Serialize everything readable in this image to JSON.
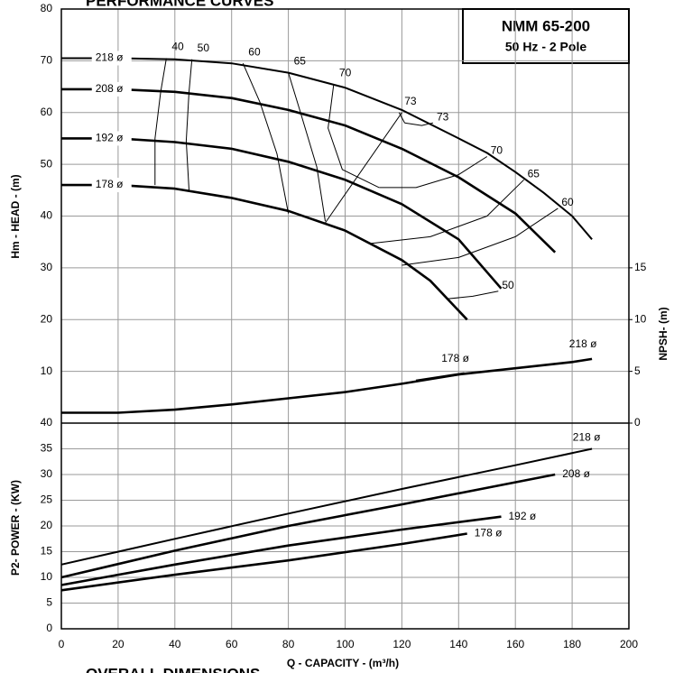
{
  "chart_data": [
    {
      "type": "line",
      "title": "PERFORMANCE CURVES",
      "model": "NMM 65-200",
      "spec": "50 Hz - 2 Pole",
      "ylabel": "Hm - HEAD - (m)",
      "y2label": "NPSH- (m)",
      "color": "#000000",
      "grid": true,
      "xlim": [
        0,
        200
      ],
      "ylim": [
        0,
        80
      ],
      "yticks": [
        10,
        20,
        30,
        40,
        50,
        60,
        70,
        80
      ],
      "y2lim": [
        0,
        40
      ],
      "y2ticks": [
        0,
        5,
        10,
        15
      ],
      "series": [
        {
          "name": "218 ø",
          "x": [
            0,
            20,
            40,
            60,
            80,
            100,
            120,
            140,
            150,
            160,
            170,
            180,
            187
          ],
          "values": [
            70.5,
            70.5,
            70.3,
            69.5,
            67.7,
            64.8,
            60.5,
            55,
            52.2,
            48.5,
            44.5,
            40,
            35.5
          ]
        },
        {
          "name": "208 ø",
          "x": [
            0,
            20,
            40,
            60,
            80,
            100,
            120,
            140,
            160,
            174
          ],
          "values": [
            64.5,
            64.5,
            64,
            62.8,
            60.5,
            57.5,
            53,
            47.5,
            40.5,
            33
          ]
        },
        {
          "name": "192 ø",
          "x": [
            0,
            20,
            40,
            60,
            80,
            100,
            120,
            140,
            155
          ],
          "values": [
            55,
            55,
            54.3,
            53,
            50.5,
            47,
            42.3,
            35.5,
            26
          ]
        },
        {
          "name": "178 ø",
          "x": [
            0,
            20,
            40,
            60,
            80,
            100,
            120,
            130,
            143
          ],
          "values": [
            46,
            46,
            45.3,
            43.5,
            41,
            37.2,
            31.5,
            27.5,
            20
          ]
        },
        {
          "name": "218 ø",
          "axis": "y2",
          "x": [
            0,
            20,
            40,
            60,
            80,
            100,
            120,
            140,
            160,
            180,
            187
          ],
          "values": [
            1,
            1,
            1.3,
            1.8,
            2.4,
            3,
            3.8,
            4.7,
            5.3,
            5.9,
            6.2
          ]
        },
        {
          "name": "178 ø",
          "axis": "y2",
          "x": [
            125,
            142
          ],
          "values": [
            4.1,
            4.8
          ]
        }
      ],
      "efficiency_curves": [
        {
          "name": "40",
          "x": [
            37,
            35,
            33,
            33
          ],
          "values": [
            70.5,
            64,
            55,
            46
          ]
        },
        {
          "name": "50",
          "x": [
            46,
            45,
            44,
            45
          ],
          "values": [
            70.3,
            64,
            54.5,
            45
          ]
        },
        {
          "name": "60",
          "x": [
            64,
            70,
            76,
            80
          ],
          "values": [
            69.5,
            62,
            52,
            40.5
          ]
        },
        {
          "name": "65",
          "x": [
            80,
            84,
            90,
            93
          ],
          "values": [
            67.7,
            60.5,
            49.5,
            39
          ]
        },
        {
          "name": "70",
          "x": [
            96,
            94,
            99,
            112
          ],
          "values": [
            65.5,
            57,
            49,
            45.5
          ]
        },
        {
          "name": "73",
          "x": [
            119,
            121
          ],
          "values": [
            60,
            58
          ]
        },
        {
          "name": "73",
          "x": [
            131,
            127,
            121
          ],
          "values": [
            58,
            57.5,
            58
          ]
        },
        {
          "name": "70",
          "x": [
            150,
            140,
            125,
            112
          ],
          "values": [
            51.5,
            48,
            45.5,
            45.5
          ]
        },
        {
          "name": "65",
          "x": [
            163,
            150,
            130,
            109
          ],
          "values": [
            47,
            40,
            36,
            34.7
          ]
        },
        {
          "name": "60",
          "x": [
            175,
            160,
            140,
            120
          ],
          "values": [
            41.5,
            36,
            32,
            30.5
          ]
        },
        {
          "name": "50",
          "x": [
            154,
            145,
            136
          ],
          "values": [
            25.5,
            24.5,
            24
          ]
        }
      ],
      "bep_line": {
        "x": [
          93,
          120
        ],
        "values": [
          38.7,
          60
        ]
      }
    },
    {
      "type": "line",
      "ylabel": "P2- POWER - (KW)",
      "xlabel": "Q - CAPACITY - (m³/h)",
      "footer": "OVERALL DIMENSIONS",
      "color": "#000000",
      "grid": true,
      "xlim": [
        0,
        200
      ],
      "xticks": [
        0,
        20,
        40,
        60,
        80,
        100,
        120,
        140,
        160,
        180,
        200
      ],
      "ylim": [
        0,
        40
      ],
      "yticks": [
        0,
        5,
        10,
        15,
        20,
        25,
        30,
        35,
        40
      ],
      "series": [
        {
          "name": "218 ø",
          "x": [
            0,
            40,
            80,
            120,
            160,
            187
          ],
          "values": [
            12.5,
            17.5,
            22.4,
            27.2,
            31.8,
            35
          ]
        },
        {
          "name": "208 ø",
          "x": [
            0,
            40,
            80,
            120,
            174
          ],
          "values": [
            10,
            15.2,
            20,
            24.2,
            30
          ]
        },
        {
          "name": "192 ø",
          "x": [
            0,
            40,
            80,
            120,
            155
          ],
          "values": [
            8.5,
            12.5,
            16.2,
            19.3,
            21.8
          ]
        },
        {
          "name": "178 ø",
          "x": [
            0,
            40,
            80,
            120,
            143
          ],
          "values": [
            7.5,
            10.5,
            13.3,
            16.5,
            18.5
          ]
        }
      ]
    }
  ]
}
